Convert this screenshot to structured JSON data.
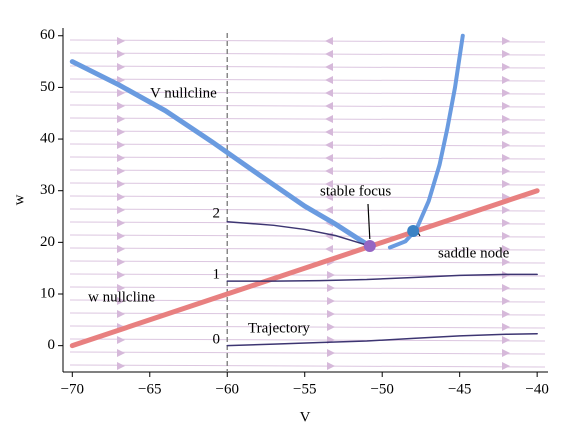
{
  "chart_data": {
    "type": "line",
    "xlabel": "V",
    "ylabel": "w",
    "xlim": [
      -70.6,
      -39.3
    ],
    "ylim": [
      -5.1,
      61.5
    ],
    "xticks": [
      {
        "value": -70,
        "label": "−70"
      },
      {
        "value": -65,
        "label": "−65"
      },
      {
        "value": -60,
        "label": "−60"
      },
      {
        "value": -55,
        "label": "−55"
      },
      {
        "value": -50,
        "label": "−50"
      },
      {
        "value": -45,
        "label": "−45"
      },
      {
        "value": -40,
        "label": "−40"
      }
    ],
    "yticks": [
      0,
      10,
      20,
      30,
      40,
      50,
      60
    ],
    "vline": -60,
    "series": [
      {
        "name": "V nullcline",
        "color": "#6a9be0",
        "x": [
          -70,
          -67,
          -64,
          -61,
          -58,
          -55,
          -53,
          -51.5,
          -50.8
        ],
        "values": [
          55,
          50.5,
          45.5,
          39.5,
          33.2,
          27,
          23.5,
          20.6,
          19.3
        ]
      },
      {
        "color": "#6a9be0",
        "x": [
          -49.5,
          -48.5,
          -47.8,
          -47,
          -46.3,
          -45.8,
          -45.3,
          -44.8
        ],
        "values": [
          19,
          20.2,
          22.5,
          28,
          35,
          42,
          50,
          60
        ]
      },
      {
        "name": "w nullcline",
        "color": "#e88080",
        "x": [
          -70,
          -40
        ],
        "values": [
          0,
          30
        ]
      },
      {
        "name": "0",
        "color": "#3d3572",
        "x": [
          -60,
          -57,
          -54,
          -51,
          -48,
          -45,
          -42,
          -40
        ],
        "values": [
          0,
          0.3,
          0.6,
          0.9,
          1.4,
          1.9,
          2.2,
          2.3
        ]
      },
      {
        "name": "1",
        "color": "#3d3572",
        "x": [
          -60,
          -57,
          -54,
          -51,
          -48,
          -45,
          -42,
          -40
        ],
        "values": [
          12.5,
          12.5,
          12.6,
          12.8,
          13.2,
          13.6,
          13.8,
          13.8
        ]
      },
      {
        "name": "2",
        "color": "#3d3572",
        "x": [
          -60,
          -57,
          -55,
          -53,
          -51.8,
          -50.8
        ],
        "values": [
          24,
          23.3,
          22.5,
          21.3,
          20.2,
          19.3
        ]
      }
    ],
    "points": [
      {
        "name": "stable focus",
        "x": -50.8,
        "y": 19.3,
        "color": "#9566c4"
      },
      {
        "name": "saddle node",
        "x": -48,
        "y": 22.2,
        "color": "#3b82c4"
      }
    ],
    "annotations": [
      "Trajectory"
    ]
  }
}
